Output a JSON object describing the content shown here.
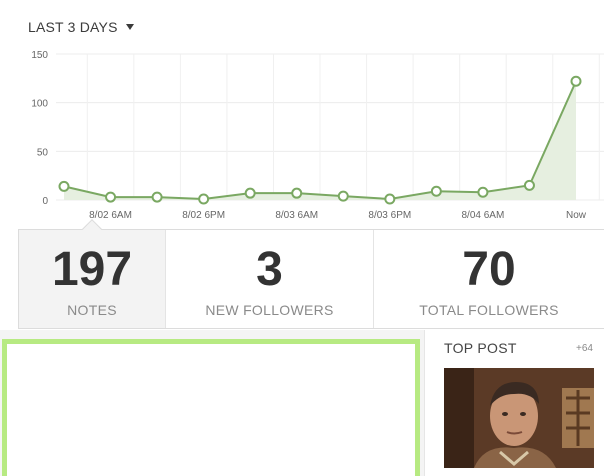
{
  "range": {
    "label": "LAST 3 DAYS",
    "caret_icon": "caret-down-icon"
  },
  "chart_data": {
    "type": "line",
    "y_ticks": [
      "150",
      "100",
      "50",
      "0"
    ],
    "ylim": [
      0,
      150
    ],
    "x_tick_labels": [
      "8/02 6AM",
      "8/02 6PM",
      "8/03 6AM",
      "8/03 6PM",
      "8/04 6AM",
      "Now"
    ],
    "values": [
      14,
      3,
      3,
      1,
      7,
      7,
      4,
      1,
      9,
      8,
      15,
      122
    ],
    "line_color": "#7aa862",
    "fill_color": "#e6efe0",
    "grid": true
  },
  "stats": [
    {
      "value": "197",
      "label": "NOTES"
    },
    {
      "value": "3",
      "label": "NEW FOLLOWERS"
    },
    {
      "value": "70",
      "label": "TOTAL FOLLOWERS"
    }
  ],
  "top_post": {
    "title": "TOP POST",
    "count": "+64"
  },
  "colors": {
    "accent_green": "#b7ea82"
  }
}
